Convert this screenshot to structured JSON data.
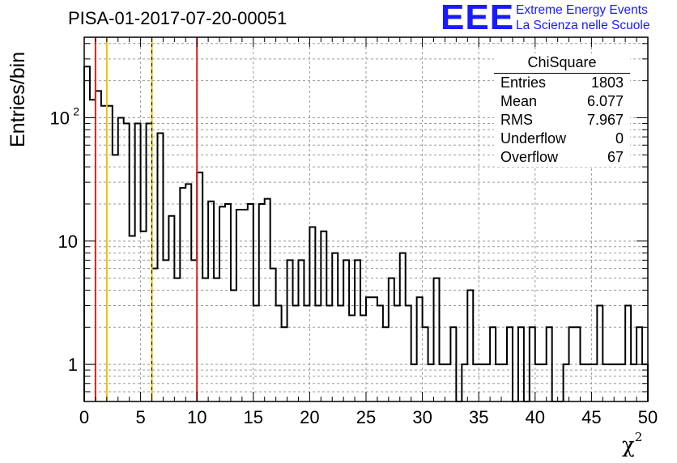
{
  "header": {
    "title": "PISA-01-2017-07-20-00051",
    "logo": "EEE",
    "logo_line1": "Extreme Energy Events",
    "logo_line2": "La Scienza nelle Scuole"
  },
  "stats_box": {
    "title": "ChiSquare",
    "rows": [
      {
        "label": "Entries",
        "value": "1803"
      },
      {
        "label": "Mean",
        "value": "6.077"
      },
      {
        "label": "RMS",
        "value": "7.967"
      },
      {
        "label": "Underflow",
        "value": "0"
      },
      {
        "label": "Overflow",
        "value": "67"
      }
    ]
  },
  "colors": {
    "histogram": "#000000",
    "red_lines": "#e02020",
    "yellow_lines": "#f0c000",
    "grid": "#9a9a9a",
    "logo": "#1a1aff"
  },
  "chart_data": {
    "type": "bar",
    "style": "step-histogram",
    "title": "PISA-01-2017-07-20-00051",
    "xlabel": "χ",
    "xlabel_superscript": "2",
    "ylabel": "Entries/bin",
    "xlim": [
      0,
      50
    ],
    "ylim": [
      0.5,
      450
    ],
    "y_scale": "log",
    "grid": true,
    "bin_width": 0.5,
    "x_ticks": [
      "0",
      "5",
      "10",
      "15",
      "20",
      "25",
      "30",
      "35",
      "40",
      "45",
      "50"
    ],
    "y_ticks": [
      {
        "value": 1,
        "label": "1"
      },
      {
        "value": 10,
        "label": "10"
      },
      {
        "value": 100,
        "label": "10",
        "sup": "2"
      }
    ],
    "values": [
      260,
      140,
      165,
      125,
      125,
      50,
      100,
      90,
      11,
      90,
      12,
      90,
      6,
      75,
      7,
      16,
      5,
      27,
      29,
      7,
      36,
      5,
      21,
      5,
      19,
      20,
      4,
      18,
      18,
      20,
      3,
      20,
      22,
      6,
      3,
      2,
      7,
      3,
      7,
      3,
      13,
      3,
      12,
      3,
      8,
      3,
      7,
      2.5,
      7,
      2.5,
      3.5,
      3.5,
      3,
      2,
      5,
      3,
      8,
      3,
      1,
      3.5,
      2,
      1,
      5,
      1,
      1,
      2,
      0,
      1,
      4,
      1,
      1,
      1,
      2,
      1,
      1,
      2,
      0,
      2,
      0,
      2,
      1,
      1,
      2,
      0,
      0,
      1,
      2,
      2,
      1,
      1,
      1,
      3,
      1,
      1,
      1,
      1,
      3,
      1,
      2,
      1
    ],
    "vertical_lines": [
      {
        "x": 1,
        "color": "red",
        "dashed": false
      },
      {
        "x": 2,
        "color": "yellow",
        "dashed": false
      },
      {
        "x": 6,
        "color": "yellow",
        "dashed": true
      },
      {
        "x": 10,
        "color": "red",
        "dashed": false
      }
    ]
  }
}
